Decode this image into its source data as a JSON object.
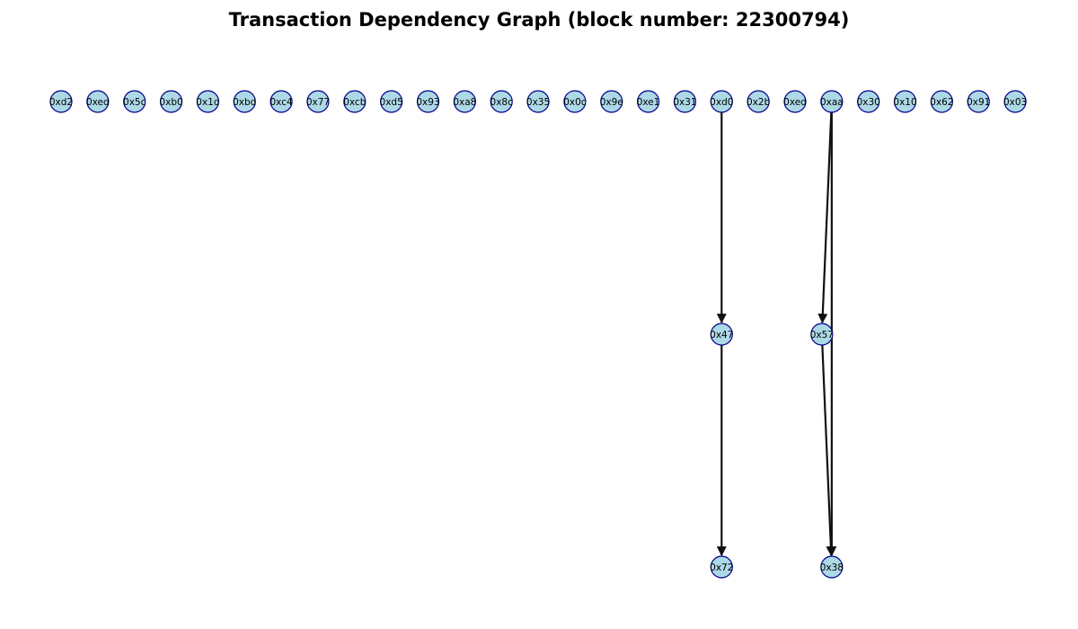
{
  "graph": {
    "title": "Transaction Dependency Graph (block number: 22300794)",
    "colors": {
      "node_fill": "#add8e6",
      "node_stroke": "#00008b",
      "edge": "#111111",
      "label": "#000000"
    },
    "layers": [
      [
        "0xd2",
        "0xed",
        "0x5c",
        "0xb0",
        "0x1d",
        "0xbd",
        "0xc4",
        "0x77",
        "0xcb",
        "0xd5",
        "0x93",
        "0xa8",
        "0x8c",
        "0x35",
        "0x0c",
        "0x9e",
        "0xe1",
        "0x31",
        "0xd0",
        "0x2b",
        "0xed",
        "0xaa",
        "0x30",
        "0x10",
        "0x62",
        "0x91",
        "0x03"
      ],
      [
        "0x47",
        "0x57"
      ],
      [
        "0x72",
        "0x38"
      ]
    ],
    "edges": [
      {
        "from": "0xd0",
        "to": "0x47"
      },
      {
        "from": "0x47",
        "to": "0x72"
      },
      {
        "from": "0xaa",
        "to": "0x57"
      },
      {
        "from": "0xaa",
        "to": "0x38"
      },
      {
        "from": "0x57",
        "to": "0x38"
      }
    ]
  }
}
